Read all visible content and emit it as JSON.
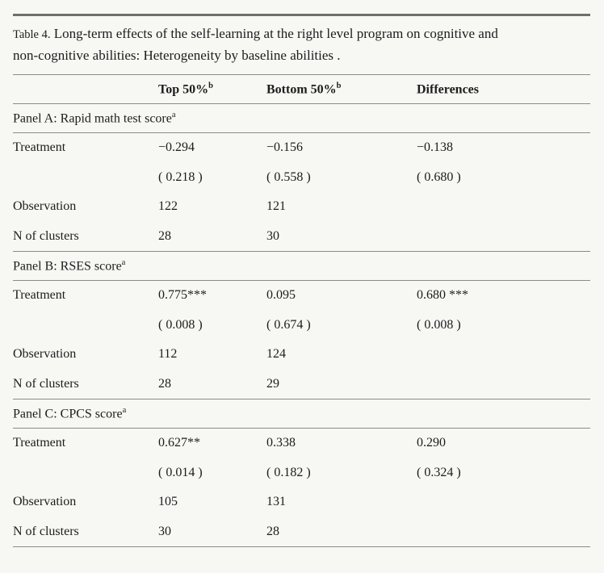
{
  "colors": {
    "background": "#f7f7f4",
    "text": "#1c1c1c",
    "rule": "#8a8a8a",
    "rule_heavy": "#6f6f6f"
  },
  "caption": {
    "label": "Table 4.",
    "line1": "Long-term effects of the self-learning at the right level program on cognitive and",
    "line2": "non-cognitive abilities: Heterogeneity by baseline abilities ."
  },
  "table": {
    "columns": [
      {
        "label": "Top 50%",
        "sup": "b"
      },
      {
        "label": "Bottom 50%",
        "sup": "b"
      },
      {
        "label": "Differences",
        "sup": ""
      }
    ],
    "panels": [
      {
        "title": "Panel A: Rapid math test score",
        "sup": "a",
        "rows": [
          {
            "label": "Treatment",
            "values": [
              "−0.294",
              "−0.156",
              "−0.138"
            ]
          },
          {
            "label": "",
            "values": [
              "( 0.218 )",
              "( 0.558 )",
              "( 0.680 )"
            ]
          },
          {
            "label": "Observation",
            "values": [
              "122",
              "121",
              ""
            ]
          },
          {
            "label": "N of clusters",
            "values": [
              "28",
              "30",
              ""
            ]
          }
        ]
      },
      {
        "title": "Panel B: RSES score",
        "sup": "a",
        "rows": [
          {
            "label": "Treatment",
            "values": [
              "0.775***",
              "0.095",
              "0.680 ***"
            ]
          },
          {
            "label": "",
            "values": [
              "( 0.008 )",
              "( 0.674 )",
              "( 0.008 )"
            ]
          },
          {
            "label": "Observation",
            "values": [
              "112",
              "124",
              ""
            ]
          },
          {
            "label": "N of clusters",
            "values": [
              "28",
              "29",
              ""
            ]
          }
        ]
      },
      {
        "title": "Panel C: CPCS score",
        "sup": "a",
        "rows": [
          {
            "label": "Treatment",
            "values": [
              "0.627**",
              "0.338",
              "0.290"
            ]
          },
          {
            "label": "",
            "values": [
              "( 0.014 )",
              "( 0.182 )",
              "( 0.324 )"
            ]
          },
          {
            "label": "Observation",
            "values": [
              "105",
              "131",
              ""
            ]
          },
          {
            "label": "N of clusters",
            "values": [
              "30",
              "28",
              ""
            ]
          }
        ]
      }
    ]
  }
}
